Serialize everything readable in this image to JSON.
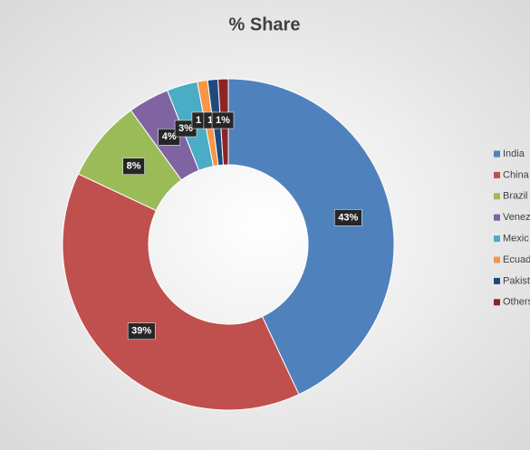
{
  "chart_data": {
    "type": "donut",
    "title": "% Share",
    "categories": [
      "India",
      "China",
      "Brazil",
      "Venez",
      "Mexic",
      "Ecuad",
      "Pakist",
      "Others"
    ],
    "values": [
      43,
      39,
      8,
      4,
      3,
      1,
      1,
      1
    ],
    "value_labels": [
      "43%",
      "39%",
      "8%",
      "4%",
      "3%",
      "1",
      "1",
      "1%"
    ],
    "colors": [
      "#4f81bd",
      "#c0504d",
      "#9bbb59",
      "#8064a2",
      "#4bacc6",
      "#f79646",
      "#1f497d",
      "#8b2525"
    ],
    "legend": "right"
  }
}
